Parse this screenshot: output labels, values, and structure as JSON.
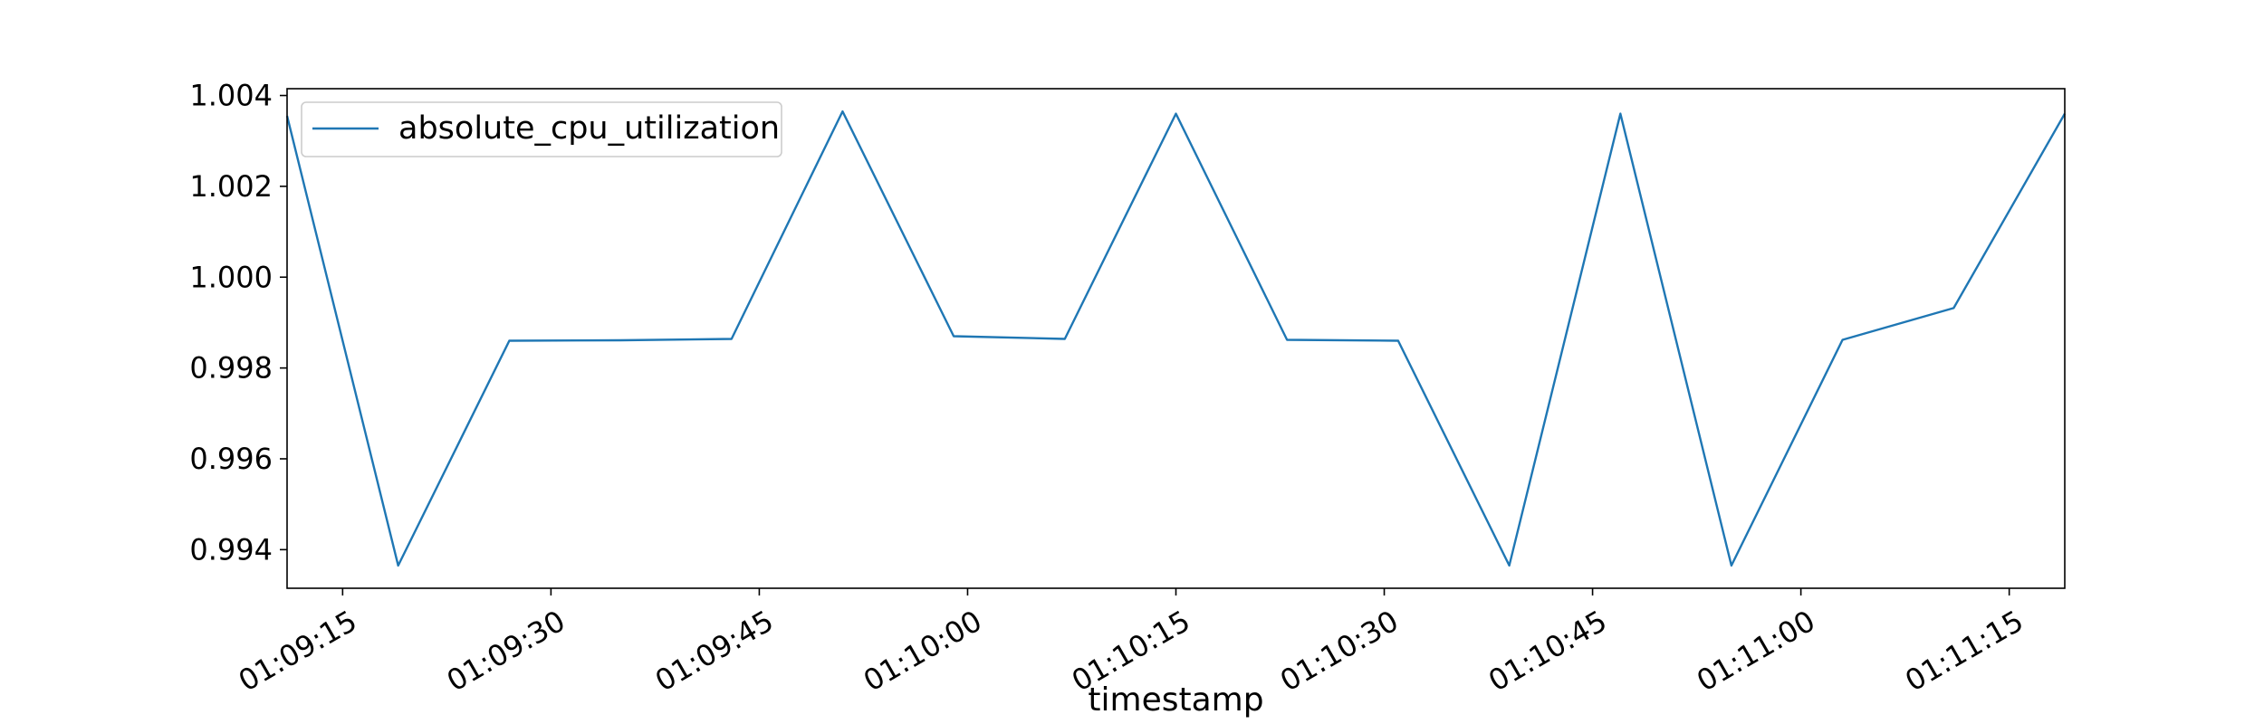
{
  "chart_data": {
    "type": "line",
    "title": "",
    "xlabel": "timestamp",
    "ylabel": "",
    "x": [
      "01:09:11",
      "01:09:19",
      "01:09:27",
      "01:09:35",
      "01:09:43",
      "01:09:51",
      "01:09:59",
      "01:10:07",
      "01:10:15",
      "01:10:23",
      "01:10:31",
      "01:10:39",
      "01:10:47",
      "01:10:55",
      "01:11:03",
      "01:11:11",
      "01:11:19"
    ],
    "series": [
      {
        "name": "absolute_cpu_utilization",
        "color": "#1f77b4",
        "values": [
          1.00355,
          0.99365,
          0.9986,
          0.99861,
          0.99864,
          1.00365,
          0.9987,
          0.99864,
          1.0036,
          0.99862,
          0.9986,
          0.99365,
          1.0036,
          0.99365,
          0.99862,
          0.99932,
          1.0036
        ]
      }
    ],
    "xlim": [
      "01:09:11",
      "01:11:19"
    ],
    "ylim": [
      0.99315,
      1.00415
    ],
    "x_ticks": [
      "01:09:15",
      "01:09:30",
      "01:09:45",
      "01:10:00",
      "01:10:15",
      "01:10:30",
      "01:10:45",
      "01:11:00",
      "01:11:15"
    ],
    "y_ticks": [
      0.994,
      0.996,
      0.998,
      1.0,
      1.002,
      1.004
    ],
    "y_tick_labels": [
      "0.994",
      "0.996",
      "0.998",
      "1.000",
      "1.002",
      "1.004"
    ],
    "legend_position": "top-left",
    "grid": false
  }
}
